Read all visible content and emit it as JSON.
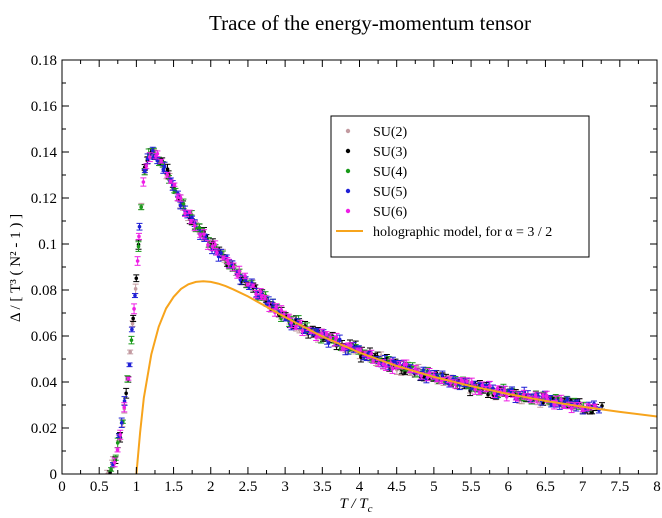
{
  "chart_data": {
    "type": "scatter",
    "title": "Trace of the energy-momentum tensor",
    "xlabel": "T / T",
    "xlabel_sub": "c",
    "ylabel": "Δ / [ T³ ( N² - 1 ) ]",
    "xlim": [
      0,
      8
    ],
    "ylim": [
      0,
      0.18
    ],
    "x_ticks": [
      0,
      0.5,
      1,
      1.5,
      2,
      2.5,
      3,
      3.5,
      4,
      4.5,
      5,
      5.5,
      6,
      6.5,
      7,
      7.5,
      8
    ],
    "x_tick_labels": [
      "0",
      "0.5",
      "1",
      "1.5",
      "2",
      "2.5",
      "3",
      "3.5",
      "4",
      "4.5",
      "5",
      "5.5",
      "6",
      "6.5",
      "7",
      "7.5",
      "8"
    ],
    "y_ticks": [
      0,
      0.02,
      0.04,
      0.06,
      0.08,
      0.1,
      0.12,
      0.14,
      0.16,
      0.18
    ],
    "y_tick_labels": [
      "0",
      "0.02",
      "0.04",
      "0.06",
      "0.08",
      "0.1",
      "0.12",
      "0.14",
      "0.16",
      "0.18"
    ],
    "legend_position": "upper-right",
    "series": [
      {
        "name": "SU(2)",
        "color": "#c39ba1",
        "x_range": [
          0.6,
          7.1
        ],
        "step": 0.05
      },
      {
        "name": "SU(3)",
        "color": "#000000",
        "x_range": [
          0.65,
          7.25
        ],
        "step": 0.05
      },
      {
        "name": "SU(4)",
        "color": "#1a9a1a",
        "x_range": [
          0.65,
          7.1
        ],
        "step": 0.06
      },
      {
        "name": "SU(5)",
        "color": "#1f1fd6",
        "x_range": [
          0.7,
          7.2
        ],
        "step": 0.05
      },
      {
        "name": "SU(6)",
        "color": "#ee1ee6",
        "x_range": [
          0.7,
          7.15
        ],
        "step": 0.05
      }
    ],
    "model_curve": {
      "name": "holographic model, for α = 3 / 2",
      "color": "#f7a41c",
      "x": [
        1.0,
        1.05,
        1.1,
        1.2,
        1.3,
        1.4,
        1.5,
        1.6,
        1.7,
        1.8,
        1.9,
        2.0,
        2.1,
        2.2,
        2.3,
        2.5,
        2.75,
        3.0,
        3.5,
        4.0,
        4.5,
        5.0,
        5.5,
        6.0,
        6.5,
        7.0,
        7.5,
        8.0
      ],
      "y": [
        0.0,
        0.018,
        0.033,
        0.052,
        0.064,
        0.072,
        0.077,
        0.0805,
        0.0825,
        0.0835,
        0.0838,
        0.0835,
        0.0828,
        0.0817,
        0.0803,
        0.0772,
        0.0727,
        0.0682,
        0.0598,
        0.0528,
        0.047,
        0.0422,
        0.0382,
        0.0348,
        0.0318,
        0.0292,
        0.027,
        0.025
      ]
    },
    "data_curve": {
      "x": [
        0.6,
        0.7,
        0.8,
        0.9,
        1.0,
        1.05,
        1.1,
        1.15,
        1.2,
        1.25,
        1.3,
        1.4,
        1.5,
        1.6,
        1.8,
        2.0,
        2.2,
        2.5,
        2.75,
        3.0,
        3.5,
        4.0,
        4.5,
        5.0,
        5.5,
        6.0,
        6.5,
        7.0,
        7.3
      ],
      "y": [
        0.0,
        0.005,
        0.02,
        0.045,
        0.085,
        0.11,
        0.13,
        0.138,
        0.14,
        0.139,
        0.137,
        0.132,
        0.125,
        0.118,
        0.108,
        0.1,
        0.093,
        0.083,
        0.075,
        0.068,
        0.06,
        0.053,
        0.047,
        0.0425,
        0.038,
        0.035,
        0.0325,
        0.0295,
        0.028
      ]
    }
  }
}
